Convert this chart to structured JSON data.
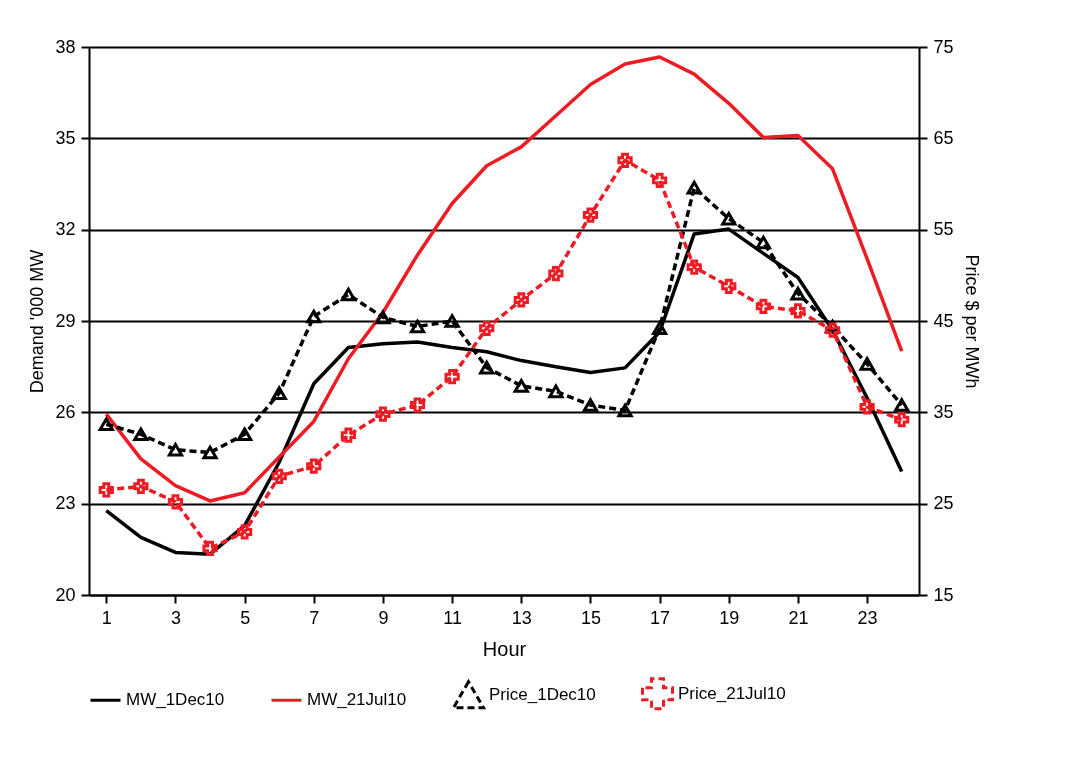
{
  "chart_data": {
    "type": "line",
    "xlabel": "Hour",
    "ylabel": "Demand '000 MW",
    "y2label": "Price $ per MWh",
    "x": [
      1,
      2,
      3,
      4,
      5,
      6,
      7,
      8,
      9,
      10,
      11,
      12,
      13,
      14,
      15,
      16,
      17,
      18,
      19,
      20,
      21,
      22,
      23,
      24
    ],
    "xlim": [
      0.5,
      24.5
    ],
    "xticks": [
      1,
      3,
      5,
      7,
      9,
      11,
      13,
      15,
      17,
      19,
      21,
      23
    ],
    "ylim": [
      20,
      38
    ],
    "yticks": [
      20,
      23,
      26,
      29,
      32,
      35,
      38
    ],
    "y2lim": [
      15,
      75
    ],
    "y2ticks": [
      15,
      25,
      35,
      45,
      55,
      65,
      75
    ],
    "grid": "y",
    "legend": "bottom",
    "series": [
      {
        "name": "MW_1Dec10",
        "color": "#000000",
        "marker": "none",
        "line_style": "solid",
        "values": [
          22.77,
          21.89,
          21.4,
          21.34,
          22.28,
          24.36,
          26.94,
          28.13,
          28.25,
          28.31,
          28.13,
          27.99,
          27.7,
          27.5,
          27.31,
          27.46,
          28.64,
          31.86,
          32.02,
          31.22,
          30.43,
          28.7,
          26.47,
          24.06
        ]
      },
      {
        "name": "MW_21Jul10",
        "color": "#ed1c24",
        "marker": "none",
        "line_style": "solid",
        "values": [
          25.94,
          24.47,
          23.59,
          23.09,
          23.36,
          24.53,
          25.7,
          27.76,
          29.28,
          31.17,
          32.86,
          34.1,
          34.72,
          35.74,
          36.77,
          37.44,
          37.67,
          37.11,
          36.15,
          35.03,
          35.09,
          34.0,
          31.04,
          28.01
        ]
      },
      {
        "name": "Price_1Dec10",
        "color": "#000000",
        "marker": "triangle",
        "line_style": "dashed",
        "axis": "y2",
        "values": [
          33.7,
          32.6,
          30.9,
          30.6,
          32.6,
          37.1,
          45.5,
          47.9,
          45.4,
          44.4,
          45.0,
          39.9,
          37.9,
          37.3,
          35.8,
          35.2,
          44.2,
          59.6,
          56.2,
          53.6,
          48.0,
          44.4,
          40.3,
          35.8
        ]
      },
      {
        "name": "Price_21Jul10",
        "color": "#ed1c24",
        "marker": "cross",
        "line_style": "dashed",
        "axis": "y2",
        "values": [
          26.5,
          26.9,
          25.2,
          20.1,
          21.9,
          28.0,
          29.1,
          32.5,
          34.8,
          35.8,
          38.9,
          44.2,
          47.3,
          50.2,
          56.6,
          62.6,
          60.4,
          50.9,
          48.8,
          46.6,
          46.1,
          44.0,
          35.6,
          34.2
        ]
      }
    ]
  }
}
